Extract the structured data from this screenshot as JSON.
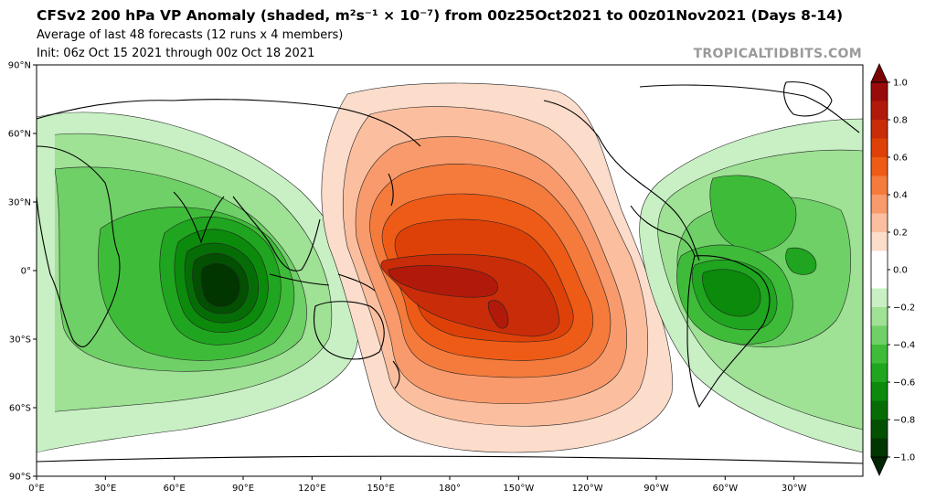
{
  "header": {
    "title": "CFSv2 200 hPa VP Anomaly (shaded, m²s⁻¹ × 10⁻⁷) from 00z25Oct2021 to 00z01Nov2021 (Days 8-14)",
    "subtitle": "Average of last 48 forecasts (12 runs x 4 members)",
    "init": "Init: 06z Oct 15 2021 through 00z Oct 18 2021",
    "brand": "TROPICALTIDBITS.COM"
  },
  "map": {
    "projection": "equirectangular",
    "lon_labels": [
      "0°E",
      "30°E",
      "60°E",
      "90°E",
      "120°E",
      "150°E",
      "180°",
      "150°W",
      "120°W",
      "90°W",
      "60°W",
      "30°W"
    ],
    "lat_labels": [
      "90°N",
      "60°N",
      "30°N",
      "0°",
      "30°S",
      "60°S",
      "90°S"
    ]
  },
  "colorbar": {
    "labels": [
      "1.0",
      "0.8",
      "0.6",
      "0.4",
      "0.2",
      "0.0",
      "−0.2",
      "−0.4",
      "−0.6",
      "−0.8",
      "−1.0"
    ],
    "positive_colors": [
      "#fcdccb",
      "#fbbf9f",
      "#f99a6c",
      "#f47b3c",
      "#ee5b17",
      "#de4108",
      "#c92c08",
      "#b11a0a",
      "#990a0a"
    ],
    "negative_colors": [
      "#c8f0c4",
      "#9fe195",
      "#6fd067",
      "#3fbb3a",
      "#1fa51f",
      "#0b8a0b",
      "#066d06",
      "#035003",
      "#013601"
    ]
  },
  "anomaly_centers": [
    {
      "type": "positive",
      "region": "central Pacific",
      "lon": -160,
      "lat": -5,
      "peak": 0.9
    },
    {
      "type": "negative",
      "region": "Indian Ocean",
      "lon": 85,
      "lat": -5,
      "peak": -1.0
    },
    {
      "type": "negative",
      "region": "South America / Atlantic",
      "lon": -55,
      "lat": -5,
      "peak": -0.5
    }
  ]
}
